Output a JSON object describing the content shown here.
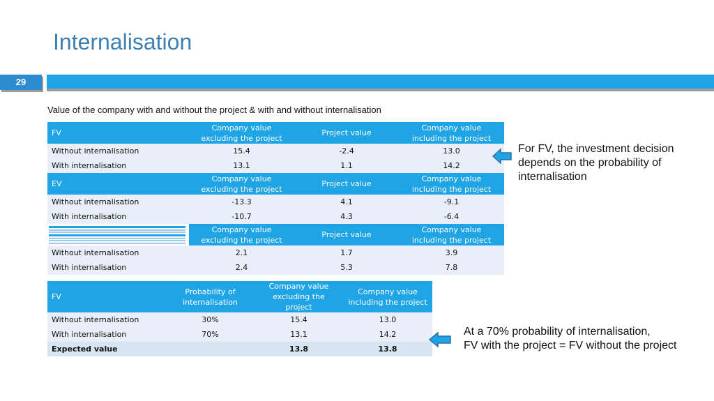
{
  "title": "Internalisation",
  "page_number": "29",
  "subtitle": "Value of the company with and without the project & with and without internalisation",
  "table1": {
    "columns": [
      "Company value excluding the project",
      "Project value",
      "Company value including the project"
    ],
    "sections": [
      {
        "label": "FV",
        "rows": [
          {
            "label": "Without internalisation",
            "values": [
              "15.4",
              "-2.4",
              "13.0"
            ]
          },
          {
            "label": "With internalisation",
            "values": [
              "13.1",
              "1.1",
              "14.2"
            ]
          }
        ]
      },
      {
        "label": "EV",
        "rows": [
          {
            "label": "Without internalisation",
            "values": [
              "-13.3",
              "4.1",
              "-9.1"
            ]
          },
          {
            "label": "With internalisation",
            "values": [
              "-10.7",
              "4.3",
              "-6.4"
            ]
          }
        ]
      },
      {
        "label": "",
        "rows": [
          {
            "label": "Without internalisation",
            "values": [
              "2.1",
              "1.7",
              "3.9"
            ]
          },
          {
            "label": "With internalisation",
            "values": [
              "2.4",
              "5.3",
              "7.8"
            ]
          }
        ]
      }
    ]
  },
  "table2": {
    "label": "FV",
    "columns": [
      "Probability of internalisation",
      "Company value excluding the project",
      "Company value including the project"
    ],
    "rows": [
      {
        "label": "Without internalisation",
        "values": [
          "30%",
          "15.4",
          "13.0"
        ]
      },
      {
        "label": "With internalisation",
        "values": [
          "70%",
          "13.1",
          "14.2"
        ]
      }
    ],
    "expected": {
      "label": "Expected value",
      "values": [
        "",
        "13.8",
        "13.8"
      ]
    }
  },
  "note1": "For FV, the investment decision depends on the probability of internalisation",
  "note2_line1": "At a 70% probability of internalisation,",
  "note2_line2": "FV with the project = FV without the project",
  "colors": {
    "accent": "#1fa4e6",
    "title": "#3d7fb0",
    "row_bg": "#e9eff8"
  }
}
